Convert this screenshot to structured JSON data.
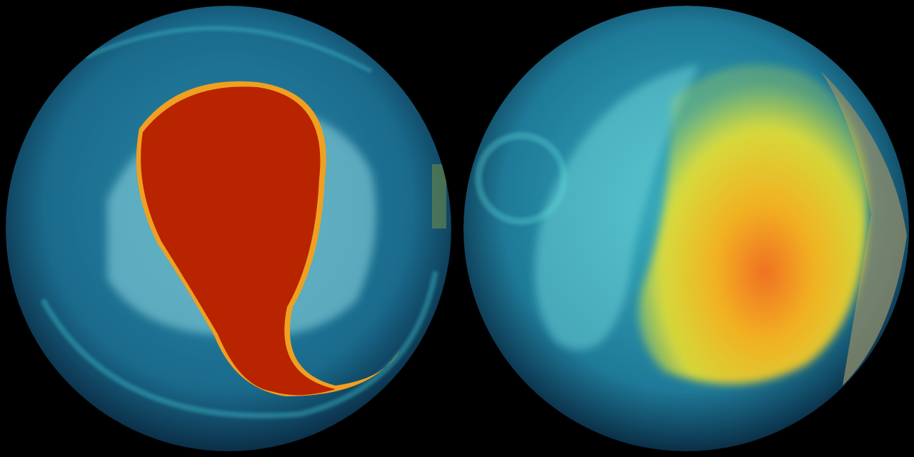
{
  "scene": {
    "background_color": "#000000",
    "globes": [
      {
        "name": "left-globe",
        "ocean_color": "#1a6a8a",
        "swirl_color": "#3fc6d0",
        "plume_color": "#b82400",
        "plume_edge_color": "#f0a020"
      },
      {
        "name": "right-globe",
        "ocean_color": "#1a6a8a",
        "swirl_color": "#5fd8d8",
        "plume_color": "#f0d020",
        "plume_core_color": "#f07020"
      }
    ]
  }
}
